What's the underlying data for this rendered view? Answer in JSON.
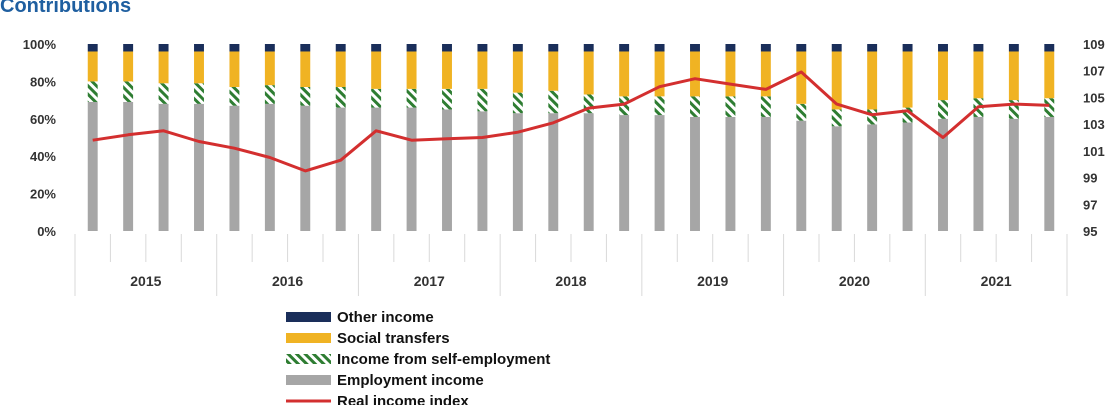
{
  "chart_data": {
    "type": "bar",
    "stacked": true,
    "cut_off_title": "Contributions",
    "years": [
      "2015",
      "2016",
      "2017",
      "2018",
      "2019",
      "2020",
      "2021"
    ],
    "quarters_per_year": 4,
    "left_axis": {
      "ticks": [
        "0%",
        "20%",
        "40%",
        "60%",
        "80%",
        "100%"
      ],
      "ylim": [
        0,
        100
      ],
      "unit": "%"
    },
    "right_axis": {
      "ticks": [
        "95",
        "97",
        "99",
        "101",
        "103",
        "105",
        "107",
        "109"
      ],
      "ylim": [
        95,
        109
      ]
    },
    "series": [
      {
        "name": "Employment income",
        "color": "#a6a6a6",
        "pattern": "solid",
        "values": [
          69,
          69,
          68,
          68,
          67,
          68,
          67,
          66,
          66,
          66,
          65,
          64,
          63,
          63,
          63,
          62,
          62,
          61,
          61,
          61,
          59,
          56,
          57,
          58,
          60,
          61,
          60,
          61
        ]
      },
      {
        "name": "Income from self-employment",
        "color": "#2e7d32",
        "pattern": "hatched",
        "values": [
          11,
          11,
          11,
          11,
          10,
          10,
          10,
          11,
          10,
          10,
          11,
          12,
          11,
          12,
          10,
          10,
          10,
          11,
          11,
          11,
          9,
          9,
          8,
          8,
          10,
          10,
          10,
          10
        ]
      },
      {
        "name": "Social transfers",
        "color": "#f0b323",
        "pattern": "solid",
        "values": [
          16,
          16,
          17,
          17,
          19,
          18,
          19,
          19,
          20,
          20,
          20,
          20,
          22,
          21,
          23,
          24,
          24,
          24,
          24,
          24,
          28,
          31,
          31,
          30,
          26,
          25,
          26,
          25
        ]
      },
      {
        "name": "Other income",
        "color": "#1a2e5a",
        "pattern": "solid",
        "values": [
          4,
          4,
          4,
          4,
          4,
          4,
          4,
          4,
          4,
          4,
          4,
          4,
          4,
          4,
          4,
          4,
          4,
          4,
          4,
          4,
          4,
          4,
          4,
          4,
          4,
          4,
          4,
          4
        ]
      },
      {
        "name": "Real income index",
        "color": "#d32f2f",
        "type": "line",
        "axis": "right",
        "values": [
          101.8,
          102.2,
          102.5,
          101.7,
          101.2,
          100.5,
          99.5,
          100.3,
          102.5,
          101.8,
          101.9,
          102.0,
          102.4,
          103.1,
          104.2,
          104.5,
          105.8,
          106.4,
          106.0,
          105.6,
          106.9,
          104.5,
          103.7,
          104.0,
          102.0,
          104.3,
          104.5,
          104.4
        ]
      }
    ],
    "legend_position": "bottom-left"
  }
}
